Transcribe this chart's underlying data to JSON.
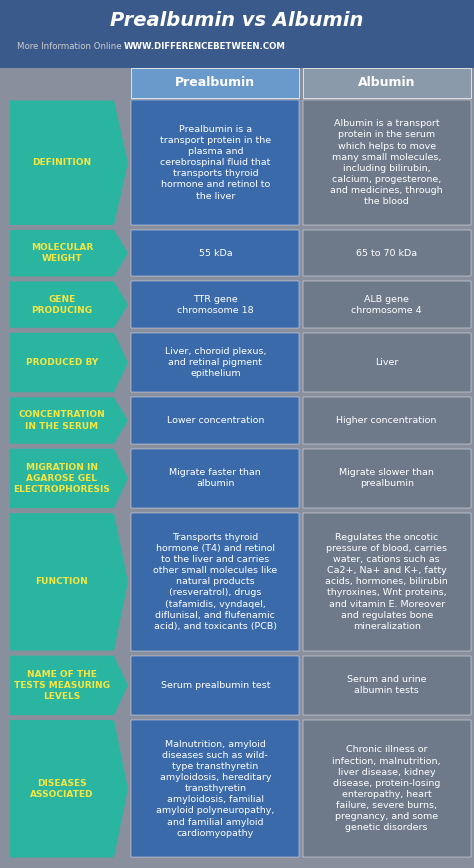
{
  "title": "Prealbumin vs Albumin",
  "subtitle_plain": "More Information Online ",
  "subtitle_url": "WWW.DIFFERENCEBETWEEN.COM",
  "bg_color": "#8a8f9e",
  "header_bg": "#3b5a8c",
  "col1_header": "Prealbumin",
  "col2_header": "Albumin",
  "header_text_color": "#ffffff",
  "label_bg": "#2ab5a0",
  "label_text_color": "#f5e642",
  "cell1_bg": "#3a6aaa",
  "cell2_bg": "#6e7a8a",
  "cell_text_color": "#ffffff",
  "rows": [
    {
      "label": "DEFINITION",
      "col1": "Prealbumin is a\ntransport protein in the\nplasma and\ncerebrospinal fluid that\ntransports thyroid\nhormone and retinol to\nthe liver",
      "col2": "Albumin is a transport\nprotein in the serum\nwhich helps to move\nmany small molecules,\nincluding bilirubin,\ncalcium, progesterone,\nand medicines, through\nthe blood"
    },
    {
      "label": "MOLECULAR\nWEIGHT",
      "col1": "55 kDa",
      "col2": "65 to 70 kDa"
    },
    {
      "label": "GENE\nPRODUCING",
      "col1": "TTR gene\nchromosome 18",
      "col2": "ALB gene\nchromosome 4"
    },
    {
      "label": "PRODUCED BY",
      "col1": "Liver, choroid plexus,\nand retinal pigment\nepithelium",
      "col2": "Liver"
    },
    {
      "label": "CONCENTRATION\nIN THE SERUM",
      "col1": "Lower concentration",
      "col2": "Higher concentration"
    },
    {
      "label": "MIGRATION IN\nAGAROSE GEL\nELECTROPHORESIS",
      "col1": "Migrate faster than\nalbumin",
      "col2": "Migrate slower than\nprealbumin"
    },
    {
      "label": "FUNCTION",
      "col1": "Transports thyroid\nhormone (T4) and retinol\nto the liver and carries\nother small molecules like\nnatural products\n(resveratrol), drugs\n(tafamidis, vyndaqel,\ndiflunisal, and flufenamic\nacid), and toxicants (PCB)",
      "col2": "Regulates the oncotic\npressure of blood, carries\nwater, cations such as\nCa2+, Na+ and K+, fatty\nacids, hormones, bilirubin\nthyroxines, Wnt proteins,\nand vitamin E. Moreover\nand regulates bone\nmineralization"
    },
    {
      "label": "NAME OF THE\nTESTS MEASURING\nLEVELS",
      "col1": "Serum prealbumin test",
      "col2": "Serum and urine\nalbumin tests"
    },
    {
      "label": "DISEASES\nASSOCIATED",
      "col1": "Malnutrition, amyloid\ndiseases such as wild-\ntype transthyretin\namyloidosis, hereditary\ntransthyretin\namyloidosis, familial\namyloid polyneuropathy,\nand familial amyloid\ncardiomyopathy",
      "col2": "Chronic illness or\ninfection, malnutrition,\nliver disease, kidney\ndisease, protein-losing\nenteropathy, heart\nfailure, severe burns,\npregnancy, and some\ngenetic disorders"
    }
  ]
}
